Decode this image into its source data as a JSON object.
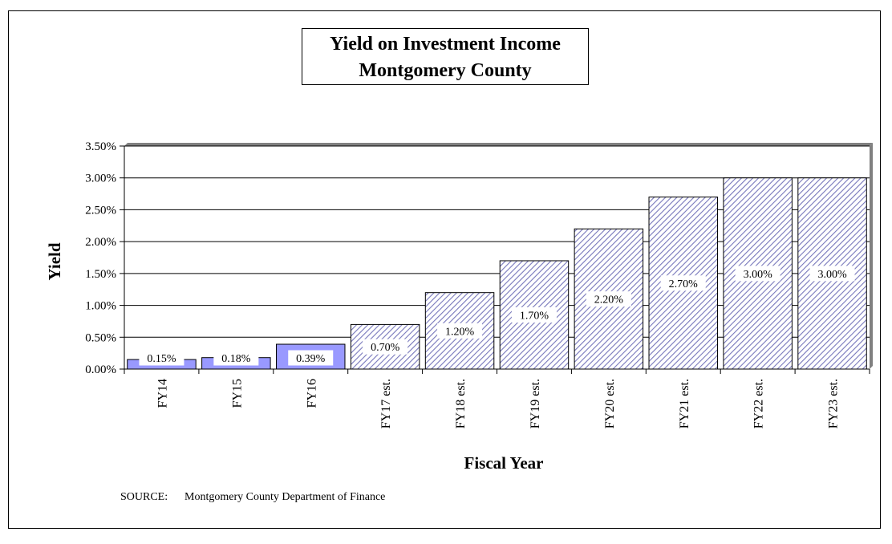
{
  "chart_data": {
    "type": "bar",
    "title": [
      "Yield on Investment Income",
      "Montgomery County"
    ],
    "xlabel": "Fiscal Year",
    "ylabel": "Yield",
    "categories": [
      "FY14",
      "FY15",
      "FY16",
      "FY17 est.",
      "FY18 est.",
      "FY19 est.",
      "FY20 est.",
      "FY21 est.",
      "FY22 est.",
      "FY23 est."
    ],
    "values": [
      0.15,
      0.18,
      0.39,
      0.7,
      1.2,
      1.7,
      2.2,
      2.7,
      3.0,
      3.0
    ],
    "value_labels": [
      "0.15%",
      "0.18%",
      "0.39%",
      "0.70%",
      "1.20%",
      "1.70%",
      "2.20%",
      "2.70%",
      "3.00%",
      "3.00%"
    ],
    "estimated": [
      false,
      false,
      false,
      true,
      true,
      true,
      true,
      true,
      true,
      true
    ],
    "ylim": [
      0,
      3.5
    ],
    "yticks": [
      0,
      0.5,
      1.0,
      1.5,
      2.0,
      2.5,
      3.0,
      3.5
    ],
    "ytick_labels": [
      "0.00%",
      "0.50%",
      "1.00%",
      "1.50%",
      "2.00%",
      "2.50%",
      "3.00%",
      "3.50%"
    ],
    "grid": true,
    "colors": {
      "actual": "#9999ff",
      "estimated_hatch": "#7777bb",
      "plot_bg": "#ffffff",
      "wall": "#808080"
    }
  },
  "source": {
    "label": "SOURCE:",
    "text": "Montgomery County Department of Finance"
  }
}
